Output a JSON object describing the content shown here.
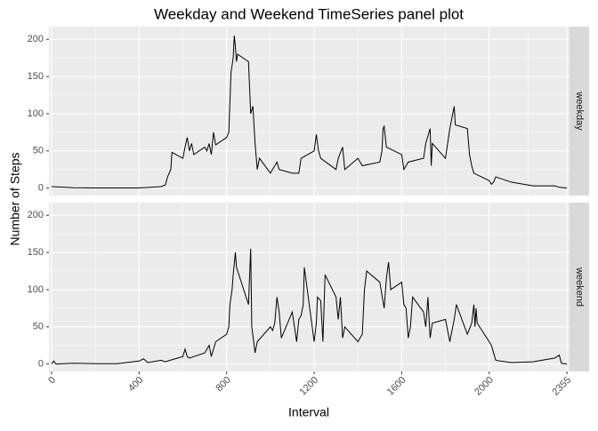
{
  "chart_data": {
    "type": "line",
    "facet": true,
    "title": "Weekday and Weekend TimeSeries panel plot",
    "xlabel": "Interval",
    "ylabel": "Number of Steps",
    "xlim": [
      -12,
      2367
    ],
    "xticks": [
      0,
      400,
      800,
      1200,
      1600,
      2000,
      2355
    ],
    "ylim": [
      -10,
      217
    ],
    "yticks": [
      0,
      50,
      100,
      150,
      200
    ],
    "grid": true,
    "series": [
      {
        "name": "weekday",
        "color": "#000000",
        "x": [
          0,
          100,
          200,
          300,
          400,
          500,
          520,
          530,
          545,
          550,
          600,
          610,
          620,
          630,
          640,
          650,
          700,
          710,
          720,
          730,
          740,
          750,
          800,
          810,
          820,
          830,
          835,
          840,
          845,
          850,
          900,
          910,
          920,
          930,
          940,
          950,
          1000,
          1020,
          1030,
          1040,
          1100,
          1130,
          1140,
          1200,
          1210,
          1220,
          1230,
          1300,
          1310,
          1330,
          1340,
          1400,
          1420,
          1500,
          1510,
          1515,
          1520,
          1530,
          1600,
          1610,
          1630,
          1700,
          1710,
          1720,
          1730,
          1735,
          1740,
          1800,
          1810,
          1820,
          1840,
          1845,
          1900,
          1910,
          1920,
          1930,
          2000,
          2010,
          2020,
          2030,
          2100,
          2200,
          2300,
          2320,
          2355
        ],
        "values": [
          2,
          0.5,
          0.2,
          0.1,
          0.1,
          2,
          4,
          15,
          25,
          48,
          40,
          55,
          68,
          50,
          60,
          45,
          55,
          50,
          60,
          45,
          75,
          58,
          68,
          75,
          155,
          175,
          205,
          190,
          170,
          180,
          170,
          100,
          110,
          60,
          25,
          40,
          20,
          30,
          35,
          25,
          20,
          20,
          40,
          50,
          72,
          50,
          40,
          25,
          40,
          55,
          25,
          40,
          30,
          35,
          50,
          80,
          83,
          55,
          45,
          25,
          35,
          40,
          60,
          70,
          80,
          30,
          60,
          40,
          60,
          80,
          110,
          85,
          80,
          45,
          30,
          20,
          10,
          5,
          8,
          15,
          8,
          3,
          3,
          1,
          0
        ]
      },
      {
        "name": "weekend",
        "color": "#000000",
        "x": [
          0,
          10,
          20,
          100,
          200,
          300,
          400,
          420,
          440,
          500,
          520,
          530,
          600,
          610,
          620,
          630,
          700,
          720,
          730,
          740,
          750,
          800,
          810,
          815,
          825,
          830,
          840,
          845,
          900,
          910,
          915,
          930,
          940,
          1000,
          1010,
          1020,
          1030,
          1040,
          1050,
          1100,
          1120,
          1130,
          1140,
          1150,
          1155,
          1200,
          1210,
          1215,
          1230,
          1240,
          1250,
          1300,
          1310,
          1320,
          1330,
          1340,
          1400,
          1420,
          1430,
          1440,
          1500,
          1520,
          1530,
          1540,
          1550,
          1600,
          1610,
          1620,
          1630,
          1640,
          1650,
          1700,
          1710,
          1720,
          1730,
          1740,
          1800,
          1820,
          1840,
          1850,
          1900,
          1920,
          1930,
          1935,
          1940,
          1945,
          2000,
          2010,
          2020,
          2030,
          2100,
          2200,
          2300,
          2320,
          2330,
          2355
        ],
        "values": [
          0,
          4,
          0,
          1,
          0.5,
          0.5,
          4,
          7,
          2,
          5,
          3,
          4,
          10,
          20,
          10,
          8,
          15,
          25,
          10,
          20,
          30,
          40,
          50,
          80,
          100,
          120,
          150,
          130,
          80,
          155,
          50,
          15,
          30,
          50,
          45,
          55,
          90,
          70,
          35,
          70,
          30,
          60,
          65,
          80,
          130,
          30,
          55,
          90,
          85,
          30,
          120,
          90,
          60,
          90,
          35,
          50,
          30,
          40,
          100,
          125,
          110,
          75,
          115,
          137,
          100,
          110,
          80,
          75,
          35,
          50,
          90,
          70,
          50,
          90,
          35,
          55,
          60,
          30,
          60,
          80,
          40,
          55,
          80,
          50,
          75,
          55,
          30,
          25,
          15,
          5,
          2,
          3,
          8,
          12,
          1,
          0
        ]
      }
    ]
  }
}
